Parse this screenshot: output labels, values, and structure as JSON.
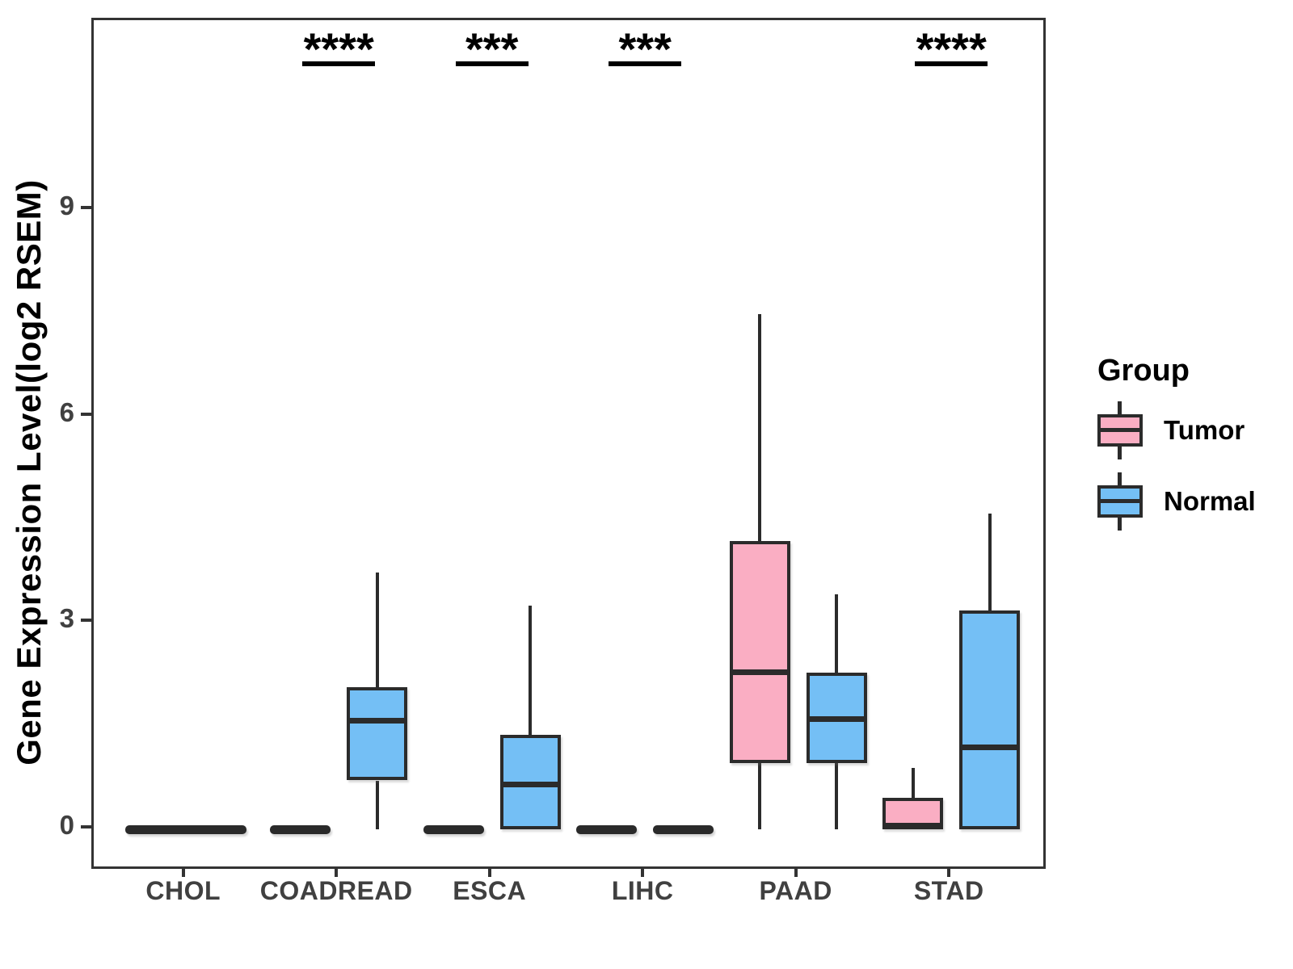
{
  "figure": {
    "y_axis": {
      "title": "Gene Expression Level(log2 RSEM)",
      "tick_labels": [
        "0",
        "3",
        "6",
        "9"
      ]
    },
    "x_axis": {
      "tick_labels": [
        "CHOL",
        "COADREAD",
        "ESCA",
        "LIHC",
        "PAAD",
        "STAD"
      ]
    },
    "legend": {
      "title": "Group",
      "items": [
        {
          "label": "Tumor",
          "color": "#FAAEC3"
        },
        {
          "label": "Normal",
          "color": "#74BFF5"
        }
      ]
    }
  },
  "chart_data": {
    "type": "boxplot",
    "title": "",
    "xlabel": "",
    "ylabel": "Gene Expression Level(log2 RSEM)",
    "categories": [
      "CHOL",
      "COADREAD",
      "ESCA",
      "LIHC",
      "PAAD",
      "STAD"
    ],
    "groups": [
      "Tumor",
      "Normal"
    ],
    "colors": {
      "Tumor": "#FAAEC3",
      "Normal": "#74BFF5",
      "stroke": "#2B2B2B"
    },
    "ylim": [
      -0.55,
      11.8
    ],
    "yticks": [
      0,
      3,
      6,
      9
    ],
    "grid": false,
    "legend_position": "right",
    "series": [
      {
        "category": "CHOL",
        "group": "Tumor",
        "flat": true,
        "full_width": true,
        "stats": {
          "min": 0,
          "q1": 0,
          "median": 0,
          "q3": 0,
          "max": 0
        }
      },
      {
        "category": "COADREAD",
        "group": "Tumor",
        "flat": true,
        "full_width": false,
        "stats": {
          "min": 0,
          "q1": 0,
          "median": 0,
          "q3": 0,
          "max": 0
        }
      },
      {
        "category": "COADREAD",
        "group": "Normal",
        "flat": false,
        "full_width": false,
        "stats": {
          "min": 0,
          "q1": 0.71,
          "median": 1.58,
          "q3": 2.07,
          "max": 3.73
        }
      },
      {
        "category": "ESCA",
        "group": "Tumor",
        "flat": true,
        "full_width": false,
        "stats": {
          "min": 0,
          "q1": 0,
          "median": 0,
          "q3": 0,
          "max": 0
        }
      },
      {
        "category": "ESCA",
        "group": "Normal",
        "flat": false,
        "full_width": false,
        "stats": {
          "min": 0,
          "q1": 0,
          "median": 0.65,
          "q3": 1.37,
          "max": 3.25
        }
      },
      {
        "category": "LIHC",
        "group": "Tumor",
        "flat": true,
        "full_width": false,
        "stats": {
          "min": 0,
          "q1": 0,
          "median": 0,
          "q3": 0,
          "max": 0
        }
      },
      {
        "category": "LIHC",
        "group": "Normal",
        "flat": true,
        "full_width": false,
        "stats": {
          "min": 0,
          "q1": 0,
          "median": 0,
          "q3": 0,
          "max": 0
        }
      },
      {
        "category": "PAAD",
        "group": "Tumor",
        "flat": false,
        "full_width": false,
        "stats": {
          "min": 0,
          "q1": 0.96,
          "median": 2.28,
          "q3": 4.19,
          "max": 7.49
        }
      },
      {
        "category": "PAAD",
        "group": "Normal",
        "flat": false,
        "full_width": false,
        "stats": {
          "min": 0,
          "q1": 0.96,
          "median": 1.6,
          "q3": 2.28,
          "max": 3.42
        }
      },
      {
        "category": "STAD",
        "group": "Tumor",
        "flat": false,
        "full_width": false,
        "stats": {
          "min": 0,
          "q1": 0,
          "median": 0.05,
          "q3": 0.46,
          "max": 0.89
        }
      },
      {
        "category": "STAD",
        "group": "Normal",
        "flat": false,
        "full_width": false,
        "stats": {
          "min": 0,
          "q1": 0,
          "median": 1.19,
          "q3": 3.18,
          "max": 4.59
        }
      }
    ],
    "significance": [
      {
        "category": "COADREAD",
        "label": "****"
      },
      {
        "category": "ESCA",
        "label": "***"
      },
      {
        "category": "LIHC",
        "label": "***"
      },
      {
        "category": "STAD",
        "label": "****"
      }
    ]
  }
}
